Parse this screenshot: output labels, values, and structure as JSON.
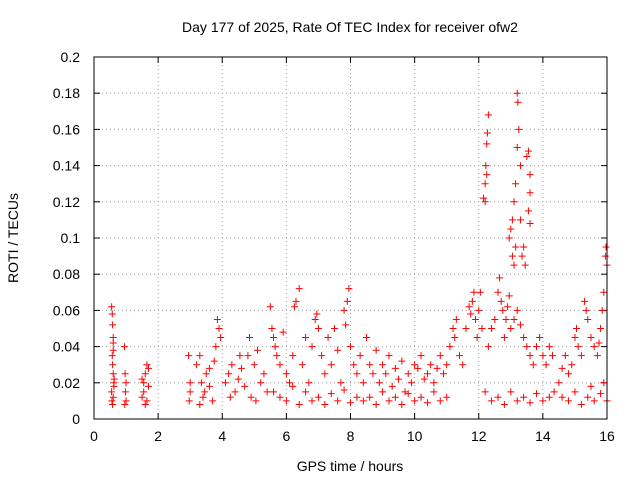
{
  "chart_data": {
    "type": "scatter",
    "title": "Day 177 of 2025, Rate Of TEC Index for receiver ofw2",
    "xlabel": "GPS time / hours",
    "ylabel": "ROTI / TECUs",
    "xlim": [
      0,
      16
    ],
    "ylim": [
      0,
      0.2
    ],
    "x_ticks": [
      0,
      2,
      4,
      6,
      8,
      10,
      12,
      14,
      16
    ],
    "x_tick_labels": [
      "0",
      "2",
      "4",
      "6",
      "8",
      "10",
      "12",
      "14",
      "16"
    ],
    "y_ticks": [
      0,
      0.02,
      0.04,
      0.06,
      0.08,
      0.1,
      0.12,
      0.14,
      0.16,
      0.18,
      0.2
    ],
    "y_tick_labels": [
      "0",
      "0.02",
      "0.04",
      "0.06",
      "0.08",
      "0.1",
      "0.12",
      "0.14",
      "0.16",
      "0.18",
      "0.2"
    ],
    "grid": true,
    "marker": "+",
    "color": "#ff0000",
    "series": [
      {
        "name": "ofw2",
        "points": [
          [
            0.55,
            0.062
          ],
          [
            0.57,
            0.058
          ],
          [
            0.58,
            0.052
          ],
          [
            0.6,
            0.045
          ],
          [
            0.6,
            0.038
          ],
          [
            0.58,
            0.03
          ],
          [
            0.6,
            0.025
          ],
          [
            0.62,
            0.02
          ],
          [
            0.55,
            0.015
          ],
          [
            0.6,
            0.012
          ],
          [
            0.58,
            0.008
          ],
          [
            0.62,
            0.018
          ],
          [
            0.57,
            0.035
          ],
          [
            0.6,
            0.042
          ],
          [
            0.63,
            0.022
          ],
          [
            0.56,
            0.01
          ],
          [
            0.95,
            0.04
          ],
          [
            0.97,
            0.025
          ],
          [
            1.0,
            0.02
          ],
          [
            0.98,
            0.015
          ],
          [
            1.0,
            0.01
          ],
          [
            0.96,
            0.008
          ],
          [
            1.5,
            0.012
          ],
          [
            1.55,
            0.02
          ],
          [
            1.6,
            0.025
          ],
          [
            1.65,
            0.03
          ],
          [
            1.7,
            0.028
          ],
          [
            1.55,
            0.015
          ],
          [
            1.6,
            0.008
          ],
          [
            1.7,
            0.018
          ],
          [
            1.5,
            0.022
          ],
          [
            1.65,
            0.01
          ],
          [
            2.95,
            0.035
          ],
          [
            3.0,
            0.02
          ],
          [
            2.97,
            0.01
          ],
          [
            3.0,
            0.015
          ],
          [
            3.2,
            0.03
          ],
          [
            3.3,
            0.035
          ],
          [
            3.35,
            0.02
          ],
          [
            3.4,
            0.012
          ],
          [
            3.5,
            0.025
          ],
          [
            3.6,
            0.018
          ],
          [
            3.7,
            0.01
          ],
          [
            3.8,
            0.04
          ],
          [
            3.85,
            0.055
          ],
          [
            3.9,
            0.05
          ],
          [
            3.75,
            0.032
          ],
          [
            3.6,
            0.028
          ],
          [
            3.45,
            0.015
          ],
          [
            3.3,
            0.008
          ],
          [
            3.95,
            0.045
          ],
          [
            4.1,
            0.02
          ],
          [
            4.2,
            0.025
          ],
          [
            4.3,
            0.03
          ],
          [
            4.4,
            0.015
          ],
          [
            4.5,
            0.022
          ],
          [
            4.6,
            0.028
          ],
          [
            4.7,
            0.018
          ],
          [
            4.8,
            0.035
          ],
          [
            4.9,
            0.012
          ],
          [
            5.0,
            0.03
          ],
          [
            5.1,
            0.038
          ],
          [
            5.2,
            0.02
          ],
          [
            5.3,
            0.025
          ],
          [
            5.4,
            0.015
          ],
          [
            4.55,
            0.035
          ],
          [
            4.25,
            0.012
          ],
          [
            4.85,
            0.045
          ],
          [
            5.05,
            0.01
          ],
          [
            5.5,
            0.062
          ],
          [
            5.55,
            0.05
          ],
          [
            5.6,
            0.045
          ],
          [
            5.65,
            0.04
          ],
          [
            5.7,
            0.035
          ],
          [
            5.8,
            0.03
          ],
          [
            5.9,
            0.048
          ],
          [
            6.0,
            0.025
          ],
          [
            6.1,
            0.02
          ],
          [
            6.2,
            0.035
          ],
          [
            6.25,
            0.062
          ],
          [
            6.3,
            0.065
          ],
          [
            6.4,
            0.072
          ],
          [
            6.5,
            0.03
          ],
          [
            6.6,
            0.045
          ],
          [
            6.7,
            0.02
          ],
          [
            6.8,
            0.04
          ],
          [
            6.9,
            0.055
          ],
          [
            6.95,
            0.058
          ],
          [
            7.0,
            0.05
          ],
          [
            7.1,
            0.035
          ],
          [
            7.2,
            0.025
          ],
          [
            7.3,
            0.045
          ],
          [
            7.4,
            0.03
          ],
          [
            7.5,
            0.05
          ],
          [
            7.6,
            0.038
          ],
          [
            7.7,
            0.02
          ],
          [
            7.8,
            0.06
          ],
          [
            7.85,
            0.052
          ],
          [
            7.9,
            0.065
          ],
          [
            7.95,
            0.072
          ],
          [
            8.0,
            0.04
          ],
          [
            8.1,
            0.03
          ],
          [
            8.2,
            0.025
          ],
          [
            8.3,
            0.035
          ],
          [
            8.4,
            0.02
          ],
          [
            5.6,
            0.015
          ],
          [
            5.8,
            0.012
          ],
          [
            6.0,
            0.01
          ],
          [
            6.2,
            0.018
          ],
          [
            6.4,
            0.008
          ],
          [
            6.6,
            0.015
          ],
          [
            6.8,
            0.01
          ],
          [
            7.0,
            0.012
          ],
          [
            7.2,
            0.008
          ],
          [
            7.4,
            0.014
          ],
          [
            7.6,
            0.01
          ],
          [
            7.8,
            0.016
          ],
          [
            8.0,
            0.009
          ],
          [
            8.2,
            0.012
          ],
          [
            8.4,
            0.01
          ],
          [
            8.5,
            0.045
          ],
          [
            8.6,
            0.03
          ],
          [
            8.7,
            0.025
          ],
          [
            8.8,
            0.038
          ],
          [
            8.9,
            0.02
          ],
          [
            9.0,
            0.03
          ],
          [
            9.1,
            0.025
          ],
          [
            9.2,
            0.035
          ],
          [
            9.3,
            0.018
          ],
          [
            9.4,
            0.028
          ],
          [
            9.5,
            0.022
          ],
          [
            9.6,
            0.032
          ],
          [
            9.7,
            0.015
          ],
          [
            9.8,
            0.025
          ],
          [
            9.9,
            0.02
          ],
          [
            10.0,
            0.03
          ],
          [
            10.1,
            0.028
          ],
          [
            10.2,
            0.035
          ],
          [
            10.3,
            0.022
          ],
          [
            10.4,
            0.025
          ],
          [
            10.5,
            0.03
          ],
          [
            10.6,
            0.02
          ],
          [
            10.7,
            0.028
          ],
          [
            10.8,
            0.035
          ],
          [
            10.9,
            0.025
          ],
          [
            11.0,
            0.03
          ],
          [
            8.6,
            0.012
          ],
          [
            8.8,
            0.008
          ],
          [
            9.0,
            0.015
          ],
          [
            9.2,
            0.01
          ],
          [
            9.4,
            0.012
          ],
          [
            9.6,
            0.008
          ],
          [
            9.8,
            0.014
          ],
          [
            10.0,
            0.01
          ],
          [
            10.2,
            0.012
          ],
          [
            10.4,
            0.009
          ],
          [
            10.6,
            0.015
          ],
          [
            10.8,
            0.01
          ],
          [
            11.0,
            0.012
          ],
          [
            11.1,
            0.04
          ],
          [
            11.2,
            0.05
          ],
          [
            11.25,
            0.045
          ],
          [
            11.3,
            0.055
          ],
          [
            11.4,
            0.035
          ],
          [
            11.5,
            0.03
          ],
          [
            11.6,
            0.05
          ],
          [
            11.7,
            0.062
          ],
          [
            11.75,
            0.058
          ],
          [
            11.8,
            0.065
          ],
          [
            11.85,
            0.07
          ],
          [
            11.9,
            0.055
          ],
          [
            11.95,
            0.045
          ],
          [
            12.0,
            0.06
          ],
          [
            12.05,
            0.07
          ],
          [
            12.1,
            0.05
          ],
          [
            12.15,
            0.122
          ],
          [
            12.2,
            0.13
          ],
          [
            12.22,
            0.14
          ],
          [
            12.25,
            0.152
          ],
          [
            12.27,
            0.158
          ],
          [
            12.3,
            0.168
          ],
          [
            12.2,
            0.12
          ],
          [
            12.25,
            0.135
          ],
          [
            12.3,
            0.04
          ],
          [
            12.4,
            0.05
          ],
          [
            12.5,
            0.055
          ],
          [
            12.6,
            0.07
          ],
          [
            12.65,
            0.078
          ],
          [
            12.7,
            0.065
          ],
          [
            12.75,
            0.06
          ],
          [
            12.8,
            0.045
          ],
          [
            12.85,
            0.055
          ],
          [
            12.9,
            0.062
          ],
          [
            12.95,
            0.068
          ],
          [
            12.95,
            0.1
          ],
          [
            13.0,
            0.105
          ],
          [
            13.05,
            0.11
          ],
          [
            13.1,
            0.12
          ],
          [
            13.15,
            0.13
          ],
          [
            13.2,
            0.15
          ],
          [
            13.2,
            0.18
          ],
          [
            13.22,
            0.175
          ],
          [
            13.25,
            0.16
          ],
          [
            13.3,
            0.14
          ],
          [
            13.3,
            0.11
          ],
          [
            13.35,
            0.09
          ],
          [
            13.4,
            0.095
          ],
          [
            13.45,
            0.085
          ],
          [
            13.5,
            0.145
          ],
          [
            13.55,
            0.148
          ],
          [
            13.6,
            0.135
          ],
          [
            13.6,
            0.125
          ],
          [
            13.55,
            0.115
          ],
          [
            13.6,
            0.108
          ],
          [
            13.05,
            0.09
          ],
          [
            13.1,
            0.085
          ],
          [
            13.15,
            0.095
          ],
          [
            13.0,
            0.05
          ],
          [
            13.1,
            0.055
          ],
          [
            13.2,
            0.06
          ],
          [
            13.3,
            0.052
          ],
          [
            13.4,
            0.045
          ],
          [
            13.5,
            0.04
          ],
          [
            13.6,
            0.035
          ],
          [
            13.7,
            0.03
          ],
          [
            13.8,
            0.04
          ],
          [
            13.9,
            0.045
          ],
          [
            14.0,
            0.035
          ],
          [
            14.1,
            0.03
          ],
          [
            14.2,
            0.04
          ],
          [
            14.3,
            0.035
          ],
          [
            12.2,
            0.015
          ],
          [
            12.4,
            0.01
          ],
          [
            12.6,
            0.012
          ],
          [
            12.8,
            0.008
          ],
          [
            13.0,
            0.015
          ],
          [
            13.2,
            0.01
          ],
          [
            13.4,
            0.012
          ],
          [
            13.6,
            0.009
          ],
          [
            13.8,
            0.014
          ],
          [
            14.0,
            0.01
          ],
          [
            14.2,
            0.012
          ],
          [
            14.35,
            0.015
          ],
          [
            14.5,
            0.02
          ],
          [
            14.6,
            0.028
          ],
          [
            14.7,
            0.035
          ],
          [
            14.8,
            0.025
          ],
          [
            14.9,
            0.03
          ],
          [
            15.0,
            0.045
          ],
          [
            15.05,
            0.05
          ],
          [
            15.1,
            0.04
          ],
          [
            15.2,
            0.035
          ],
          [
            15.3,
            0.065
          ],
          [
            15.35,
            0.06
          ],
          [
            15.4,
            0.055
          ],
          [
            15.5,
            0.045
          ],
          [
            15.6,
            0.04
          ],
          [
            15.7,
            0.035
          ],
          [
            15.75,
            0.042
          ],
          [
            15.8,
            0.05
          ],
          [
            15.85,
            0.06
          ],
          [
            15.9,
            0.07
          ],
          [
            15.95,
            0.09
          ],
          [
            15.97,
            0.095
          ],
          [
            16.0,
            0.085
          ],
          [
            14.6,
            0.012
          ],
          [
            14.8,
            0.01
          ],
          [
            15.0,
            0.015
          ],
          [
            15.2,
            0.008
          ],
          [
            15.4,
            0.012
          ],
          [
            15.6,
            0.01
          ],
          [
            15.8,
            0.014
          ],
          [
            16.0,
            0.01
          ],
          [
            15.9,
            0.02
          ],
          [
            15.5,
            0.018
          ]
        ]
      }
    ]
  }
}
